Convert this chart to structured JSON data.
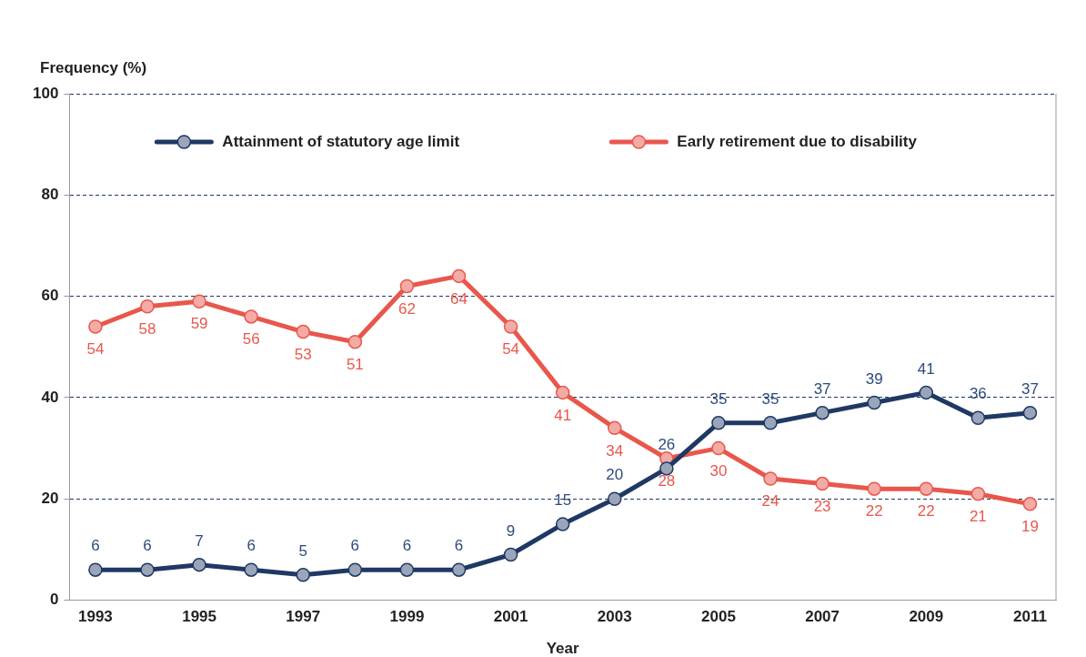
{
  "chart_data": {
    "type": "line",
    "ylabel": "Frequency (%)",
    "xlabel": "Year",
    "categories": [
      "1993",
      null,
      "1995",
      null,
      "1997",
      null,
      "1999",
      null,
      "2001",
      null,
      "2003",
      null,
      "2005",
      null,
      "2007",
      null,
      "2009",
      null,
      "2011"
    ],
    "series": [
      {
        "name": "Attainment of statutory age limit",
        "color": "#1f3864",
        "values": [
          6,
          6,
          7,
          6,
          5,
          6,
          6,
          6,
          9,
          15,
          20,
          26,
          35,
          35,
          37,
          39,
          41,
          36,
          37
        ]
      },
      {
        "name": "Early retirement due to disability",
        "color": "#e8574c",
        "values": [
          54,
          58,
          59,
          56,
          53,
          51,
          62,
          64,
          54,
          41,
          34,
          28,
          30,
          24,
          23,
          22,
          22,
          21,
          19
        ]
      }
    ],
    "ylim": [
      0,
      100
    ],
    "yticks": [
      0,
      20,
      40,
      60,
      80,
      100
    ],
    "grid": "y",
    "legend": "top",
    "marker": "circle",
    "line_style": "solid",
    "data_labels": true
  }
}
